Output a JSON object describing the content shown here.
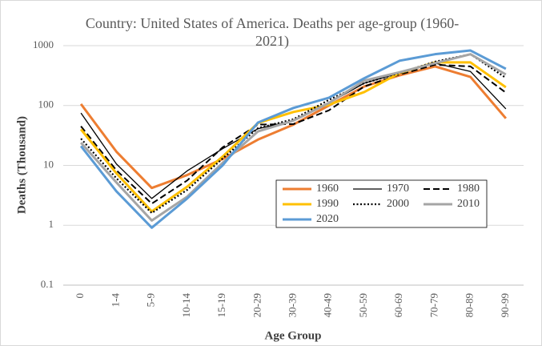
{
  "chart_data": {
    "type": "line",
    "title": "Country: United States of  America. Deaths per age-group (1960-2021)",
    "x_label": "Age Group",
    "y_label": "Deaths (Thousand)",
    "categories": [
      "0",
      "1-4",
      "5-9",
      "10-14",
      "15-19",
      "20-29",
      "30-39",
      "40-49",
      "50-59",
      "60-69",
      "70-79",
      "80-89",
      "90-99"
    ],
    "y_scale": "log",
    "ylim": [
      0.1,
      1000
    ],
    "yticks": [
      0.1,
      1,
      10,
      100,
      1000
    ],
    "grid": true,
    "legend_position": "right",
    "series": [
      {
        "name": "1960",
        "color": "#ed7d31",
        "line_width": 3,
        "dash": "solid",
        "values": [
          106,
          17,
          4.2,
          6.9,
          12.8,
          27,
          48,
          100,
          208,
          320,
          450,
          300,
          61
        ]
      },
      {
        "name": "1970",
        "color": "#000000",
        "line_width": 1.3,
        "dash": "solid",
        "values": [
          75,
          10.6,
          2.8,
          8.1,
          19,
          41,
          56,
          110,
          236,
          350,
          510,
          370,
          88
        ]
      },
      {
        "name": "1980",
        "color": "#000000",
        "line_width": 2,
        "dash": "dashed",
        "values": [
          45,
          8.3,
          2.3,
          5.6,
          20,
          48,
          49,
          83,
          208,
          330,
          480,
          450,
          164
        ]
      },
      {
        "name": "1990",
        "color": "#ffc000",
        "line_width": 3,
        "dash": "solid",
        "values": [
          40,
          7.4,
          1.7,
          4.4,
          14,
          51,
          78,
          103,
          168,
          350,
          525,
          525,
          202
        ]
      },
      {
        "name": "2000",
        "color": "#000000",
        "line_width": 2.2,
        "dash": "dotted",
        "values": [
          28,
          6.1,
          1.6,
          3.9,
          13,
          42,
          59,
          124,
          236,
          350,
          540,
          720,
          290
        ]
      },
      {
        "name": "2010",
        "color": "#a5a5a5",
        "line_width": 3,
        "dash": "solid",
        "values": [
          24,
          5.2,
          1.2,
          3.0,
          11,
          37,
          56,
          110,
          260,
          360,
          510,
          720,
          330
        ]
      },
      {
        "name": "2020",
        "color": "#5b9bd5",
        "line_width": 3,
        "dash": "solid",
        "values": [
          21,
          3.7,
          0.91,
          2.8,
          10,
          52,
          91,
          135,
          285,
          560,
          720,
          830,
          410
        ]
      }
    ]
  }
}
